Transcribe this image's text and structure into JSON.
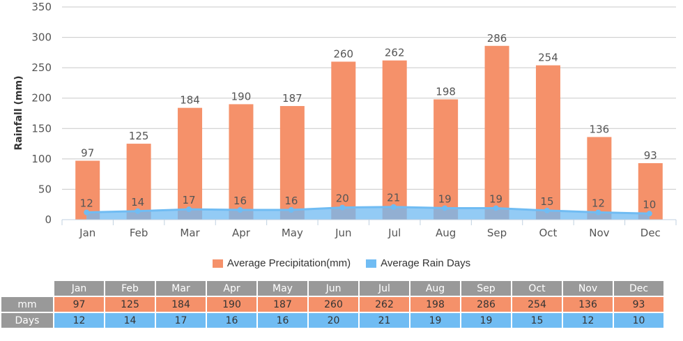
{
  "colors": {
    "precip": "#f5916a",
    "days": "#70bcf3",
    "days_fill": "#93cbf5",
    "overlap": "#92afd2",
    "grid": "#c8c8c8",
    "header": "#999999"
  },
  "chart_data": {
    "type": "bar",
    "title": "",
    "xlabel": "",
    "ylabel": "Rainfall (mm)",
    "ylim": [
      0,
      350
    ],
    "yticks": [
      0,
      50,
      100,
      150,
      200,
      250,
      300,
      350
    ],
    "grid": true,
    "legend_position": "bottom",
    "categories": [
      "Jan",
      "Feb",
      "Mar",
      "Apr",
      "May",
      "Jun",
      "Jul",
      "Aug",
      "Sep",
      "Oct",
      "Nov",
      "Dec"
    ],
    "series": [
      {
        "name": "Average Precipitation(mm)",
        "type": "bar",
        "values": [
          97,
          125,
          184,
          190,
          187,
          260,
          262,
          198,
          286,
          254,
          136,
          93
        ]
      },
      {
        "name": "Average Rain Days",
        "type": "area",
        "values": [
          12,
          14,
          17,
          16,
          16,
          20,
          21,
          19,
          19,
          15,
          12,
          10
        ]
      }
    ]
  },
  "legend": [
    {
      "label": "Average Precipitation(mm)",
      "color": "#f5916a"
    },
    {
      "label": "Average Rain Days",
      "color": "#70bcf3"
    }
  ],
  "table": {
    "months": [
      "Jan",
      "Feb",
      "Mar",
      "Apr",
      "May",
      "Jun",
      "Jul",
      "Aug",
      "Sep",
      "Oct",
      "Nov",
      "Dec"
    ],
    "rows": [
      {
        "label": "mm",
        "values": [
          "97",
          "125",
          "184",
          "190",
          "187",
          "260",
          "262",
          "198",
          "286",
          "254",
          "136",
          "93"
        ]
      },
      {
        "label": "Days",
        "values": [
          "12",
          "14",
          "17",
          "16",
          "16",
          "20",
          "21",
          "19",
          "19",
          "15",
          "12",
          "10"
        ]
      }
    ]
  }
}
